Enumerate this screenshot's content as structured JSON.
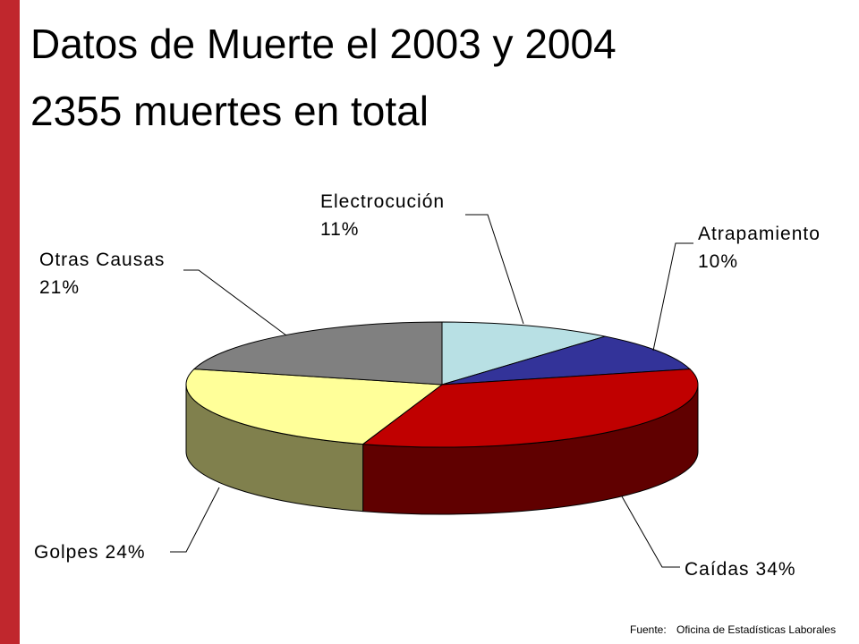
{
  "chart_data": {
    "type": "pie",
    "title": "Datos de Muerte el 2003 y 2004",
    "subtitle": "2355 muertes en total",
    "categories": [
      "Electrocución",
      "Atrapamiento",
      "Caídas",
      "Golpes",
      "Otras Causas"
    ],
    "values": [
      11,
      10,
      34,
      24,
      21
    ],
    "value_labels": [
      "11%",
      "10%",
      "34%",
      "24%",
      "21%"
    ],
    "colors": [
      "#b8e0e4",
      "#333399",
      "#c00000",
      "#ffff99",
      "#808080"
    ],
    "source_label": "Fuente:",
    "source": "Oficina de Estadísticas Laborales"
  }
}
